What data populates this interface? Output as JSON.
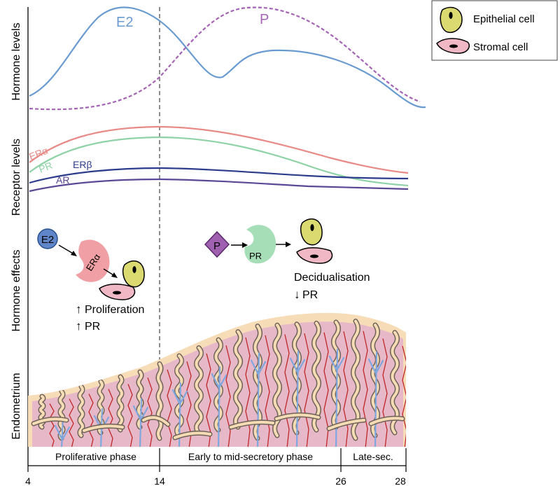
{
  "panels": {
    "hormone_levels": "Hormone levels",
    "receptor_levels": "Receptor levels",
    "hormone_effects": "Hormone effects",
    "endometrium": "Endometrium"
  },
  "hormone_curves": {
    "e2": "E2",
    "p": "P"
  },
  "receptor_curves": {
    "er_alpha": "ERα",
    "pr": "PR",
    "er_beta": "ERβ",
    "ar": "AR"
  },
  "legend": {
    "epithelial": "Epithelial cell",
    "stromal": "Stromal cell"
  },
  "effects_left": {
    "hormone": "E2",
    "receptor": "ERα",
    "line1": "Proliferation",
    "line2": "PR"
  },
  "effects_right": {
    "hormone": "P",
    "receptor": "PR",
    "line1": "Decidualisation",
    "line2": "PR"
  },
  "phases": {
    "proliferative": "Proliferative phase",
    "secretory": "Early to mid-secretory phase",
    "late": "Late-sec."
  },
  "days": [
    "4",
    "14",
    "26",
    "28"
  ],
  "colors": {
    "e2": "#6a9bd0",
    "p": "#a463b4",
    "er_alpha": "#e88a86",
    "pr": "#8ed2a6",
    "er_beta": "#2c3c8c",
    "ar": "#5a4795",
    "stroma": "#e8bccb",
    "gland": "#f5dcb4",
    "vessel": "#c02828",
    "blue_vessel": "#7fa7e0"
  }
}
